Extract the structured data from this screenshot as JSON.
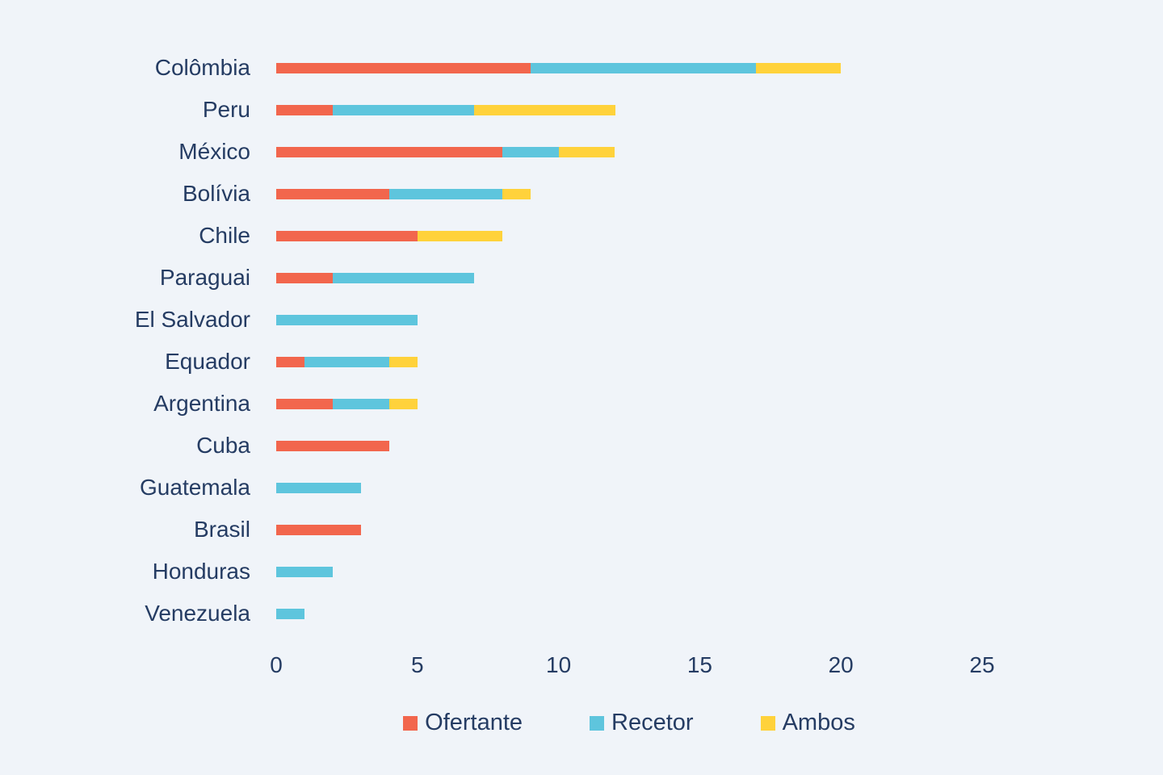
{
  "page": {
    "background_color": "#F0F4F9",
    "text_color": "#253C63"
  },
  "chart_data": {
    "type": "bar",
    "orientation": "horizontal",
    "stacked": true,
    "title": "",
    "xlabel": "",
    "ylabel": "",
    "categories": [
      "Colômbia",
      "Peru",
      "México",
      "Bolívia",
      "Chile",
      "Paraguai",
      "El Salvador",
      "Equador",
      "Argentina",
      "Cuba",
      "Guatemala",
      "Brasil",
      "Honduras",
      "Venezuela"
    ],
    "series": [
      {
        "name": "Ofertante",
        "color": "#F2664D",
        "values": [
          9,
          2,
          8,
          4,
          5,
          2,
          0,
          1,
          2,
          4,
          0,
          3,
          0,
          0
        ]
      },
      {
        "name": "Recetor",
        "color": "#5EC5DD",
        "values": [
          8,
          5,
          2,
          4,
          0,
          5,
          5,
          3,
          2,
          0,
          3,
          0,
          2,
          1
        ]
      },
      {
        "name": "Ambos",
        "color": "#FFD23B",
        "values": [
          3,
          5,
          2,
          1,
          3,
          0,
          0,
          1,
          1,
          0,
          0,
          0,
          0,
          0
        ]
      }
    ],
    "totals": [
      20,
      12,
      12,
      9,
      8,
      7,
      5,
      5,
      5,
      4,
      3,
      3,
      2,
      1
    ],
    "xlim": [
      0,
      25
    ],
    "x_ticks": [
      "0",
      "5",
      "10",
      "15",
      "20",
      "25"
    ],
    "grid": false,
    "legend_position": "bottom"
  }
}
